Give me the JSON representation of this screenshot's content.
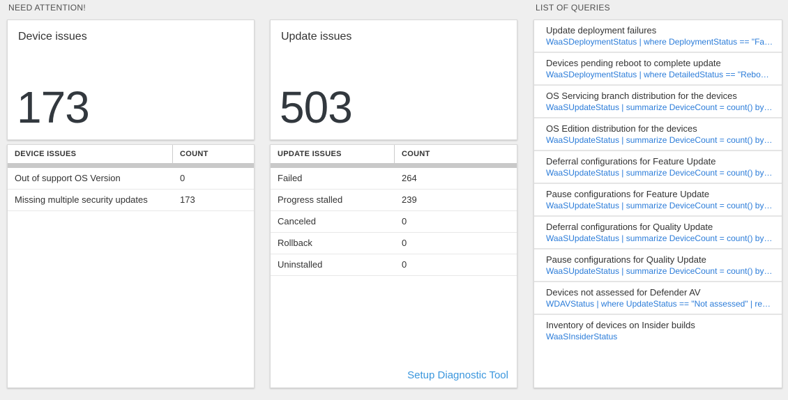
{
  "sections": {
    "need_attention_label": "NEED ATTENTION!",
    "list_of_queries_label": "LIST OF QUERIES"
  },
  "device_card": {
    "title": "Device issues",
    "value": "173"
  },
  "device_table": {
    "headers": {
      "name": "DEVICE ISSUES",
      "count": "COUNT"
    },
    "rows": [
      {
        "label": "Out of support OS Version",
        "count": "0"
      },
      {
        "label": "Missing multiple security updates",
        "count": "173"
      }
    ]
  },
  "update_card": {
    "title": "Update issues",
    "value": "503"
  },
  "update_table": {
    "headers": {
      "name": "UPDATE ISSUES",
      "count": "COUNT"
    },
    "rows": [
      {
        "label": "Failed",
        "count": "264"
      },
      {
        "label": "Progress stalled",
        "count": "239"
      },
      {
        "label": "Canceled",
        "count": "0"
      },
      {
        "label": "Rollback",
        "count": "0"
      },
      {
        "label": "Uninstalled",
        "count": "0"
      }
    ],
    "footer_link": "Setup Diagnostic Tool"
  },
  "queries": [
    {
      "title": "Update deployment failures",
      "query": "WaaSDeploymentStatus | where DeploymentStatus == \"Failed\" |..."
    },
    {
      "title": "Devices pending reboot to complete update",
      "query": "WaaSDeploymentStatus | where DetailedStatus == \"Reboot pend..."
    },
    {
      "title": "OS Servicing branch distribution for the devices",
      "query": "WaaSUpdateStatus | summarize DeviceCount = count() by OSSer..."
    },
    {
      "title": "OS Edition distribution for the devices",
      "query": "WaaSUpdateStatus | summarize DeviceCount = count() by OSEdit..."
    },
    {
      "title": "Deferral configurations for Feature Update",
      "query": "WaaSUpdateStatus | summarize DeviceCount = count() by Featur..."
    },
    {
      "title": "Pause configurations for Feature Update",
      "query": "WaaSUpdateStatus | summarize DeviceCount = count() by Featur..."
    },
    {
      "title": "Deferral configurations for Quality Update",
      "query": "WaaSUpdateStatus | summarize DeviceCount = count() by Qualit..."
    },
    {
      "title": "Pause configurations for Quality Update",
      "query": "WaaSUpdateStatus | summarize DeviceCount = count() by Qualit..."
    },
    {
      "title": "Devices not assessed for Defender AV",
      "query": "WDAVStatus | where UpdateStatus == \"Not assessed\" | render ta..."
    },
    {
      "title": "Inventory of devices on Insider builds",
      "query": "WaaSInsiderStatus"
    }
  ],
  "colors": {
    "page_background": "#efefef",
    "card_background": "#ffffff",
    "card_border": "#d9d9d9",
    "text_primary": "#333333",
    "big_number": "#32383e",
    "scrollbar": "#c9c9c9",
    "query_link_blue": "#2b7cd9",
    "diagnostic_link_blue": "#3a96dd"
  }
}
